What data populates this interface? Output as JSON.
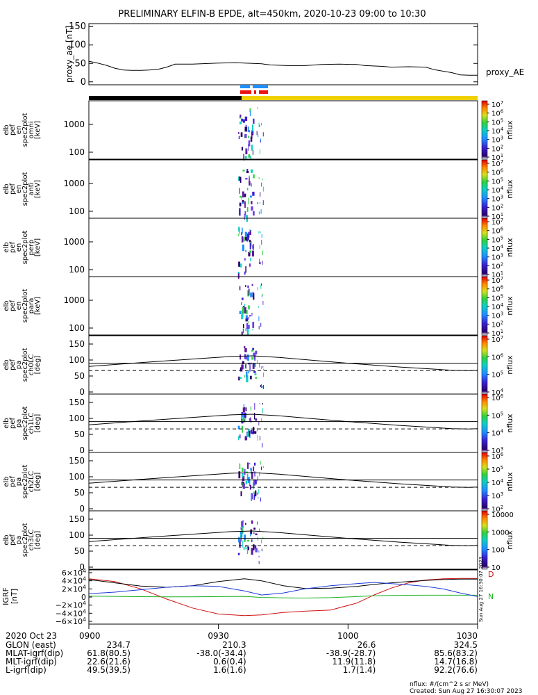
{
  "title": "PRELIMINARY ELFIN-B EPDE, alt=450km, 2020-10-23 09:00 to 10:30",
  "colors": {
    "black_bar": "#000000",
    "yellow_bar": "#f0d000",
    "blue_flag": "#1e90ff",
    "red_flag": "#ee1111",
    "ae_line": "#000000",
    "bx": "#000000",
    "by": "#1a3ad8",
    "bz": "#18b020",
    "bd": "#d01010"
  },
  "chart_data": [
    {
      "type": "line",
      "ylabel": "proxy_ae [nT]",
      "yticks": [
        "150",
        "100",
        "50",
        "0"
      ],
      "ylim": [
        0,
        150
      ],
      "series": [
        {
          "name": "proxy_AE",
          "x": [
            0,
            2,
            4,
            6,
            8,
            10,
            12,
            14,
            16,
            18,
            20,
            24,
            28,
            30,
            34,
            36,
            40,
            42,
            46,
            50,
            54,
            58,
            62,
            64,
            68,
            70,
            74,
            78,
            80,
            84,
            86,
            88,
            90
          ],
          "values": [
            56,
            51,
            45,
            37,
            32,
            31,
            31,
            32,
            34,
            40,
            48,
            48,
            50,
            51,
            52,
            51,
            49,
            46,
            44,
            44,
            47,
            48,
            47,
            44,
            42,
            40,
            41,
            40,
            33,
            25,
            19,
            18,
            18
          ]
        }
      ]
    },
    {
      "type": "heatmap",
      "ylabel": [
        "elb",
        "pef",
        "en",
        "spec2plot",
        "omni",
        "[keV]"
      ],
      "yticks": [
        "1000",
        "100"
      ],
      "cb_label": "nflux",
      "cb_ticks": [
        "10^7",
        "10^6",
        "10^5",
        "10^4",
        "10^3",
        "10^2",
        "10^1"
      ]
    },
    {
      "type": "heatmap",
      "ylabel": [
        "elb",
        "pef",
        "en",
        "spec2plot",
        "anti",
        "[keV]"
      ],
      "yticks": [
        "1000",
        "100"
      ],
      "cb_label": "nflux",
      "cb_ticks": [
        "10^7",
        "10^6",
        "10^5",
        "10^4",
        "10^3",
        "10^2",
        "10^1"
      ]
    },
    {
      "type": "heatmap",
      "ylabel": [
        "elb",
        "pef",
        "en",
        "spec2plot",
        "perp",
        "[keV]"
      ],
      "yticks": [
        "1000",
        "100"
      ],
      "cb_label": "nflux",
      "cb_ticks": [
        "10^7",
        "10^6",
        "10^5",
        "10^4",
        "10^3",
        "10^2",
        "10^1"
      ]
    },
    {
      "type": "heatmap",
      "ylabel": [
        "elb",
        "pef",
        "en",
        "spec2plot",
        "para",
        "[keV]"
      ],
      "yticks": [
        "1000",
        "100"
      ],
      "cb_label": "nflux",
      "cb_ticks": [
        "10^7",
        "10^6",
        "10^5",
        "10^4",
        "10^3",
        "10^2",
        "10^1"
      ]
    },
    {
      "type": "heatmap",
      "ylabel": [
        "elb",
        "pef",
        "pa",
        "spec2plot",
        "ch0LC",
        "[deg]"
      ],
      "yticks": [
        "150",
        "100",
        "50",
        "0"
      ],
      "cb_label": "nflux",
      "cb_ticks": [
        "10^7",
        "10^6",
        "10^5",
        "10^4"
      ]
    },
    {
      "type": "heatmap",
      "ylabel": [
        "elb",
        "pef",
        "pa",
        "spec2plot",
        "ch1LC",
        "[deg]"
      ],
      "yticks": [
        "150",
        "100",
        "50",
        "0"
      ],
      "cb_label": "nflux",
      "cb_ticks": [
        "10^6",
        "10^5",
        "10^4",
        "10^3"
      ]
    },
    {
      "type": "heatmap",
      "ylabel": [
        "elb",
        "pef",
        "pa",
        "spec2plot",
        "ch2LC",
        "[deg]"
      ],
      "yticks": [
        "150",
        "100",
        "50",
        "0"
      ],
      "cb_label": "nflux",
      "cb_ticks": [
        "10^6",
        "10^5",
        "10^4",
        "10^3",
        "10^2"
      ]
    },
    {
      "type": "heatmap",
      "ylabel": [
        "elb",
        "pef",
        "pa",
        "spec2plot",
        "ch3LC",
        "[deg]"
      ],
      "yticks": [
        "150",
        "100",
        "50",
        "0"
      ],
      "cb_label": "nflux",
      "cb_ticks": [
        "10000",
        "1000",
        "100",
        "10"
      ]
    },
    {
      "type": "line",
      "ylabel": [
        "IGRF",
        "[nT]"
      ],
      "yticks": [
        "6×10^4",
        "4×10^4",
        "2×10^4",
        "0",
        "−2×10^4",
        "−4×10^4",
        "−6×10^4"
      ],
      "ylim": [
        -60000,
        60000
      ],
      "legend": [
        "D",
        "N"
      ],
      "series": [
        {
          "name": "D",
          "x": [
            0,
            6,
            12,
            18,
            24,
            30,
            36,
            40,
            45,
            50,
            56,
            62,
            66,
            70,
            74,
            78,
            82,
            86,
            90
          ],
          "values": [
            45000,
            38000,
            20000,
            -5000,
            -27000,
            -42000,
            -46000,
            -44000,
            -38000,
            -35000,
            -32000,
            -15000,
            5000,
            22000,
            35000,
            42000,
            45000,
            46000,
            46000
          ]
        },
        {
          "name": "N",
          "x": [
            0,
            6,
            12,
            18,
            24,
            30,
            36,
            40,
            45,
            50,
            56,
            62,
            66,
            70,
            74,
            78,
            82,
            86,
            90
          ],
          "values": [
            2000,
            1500,
            800,
            500,
            500,
            1000,
            1500,
            -1000,
            -2000,
            -2500,
            -1500,
            1000,
            3000,
            4000,
            4200,
            4400,
            4500,
            4500,
            4500
          ]
        },
        {
          "name": "",
          "x": [
            0,
            6,
            12,
            18,
            24,
            30,
            36,
            40,
            45,
            50,
            56,
            62,
            66,
            70,
            74,
            78,
            82,
            86,
            90
          ],
          "values": [
            43000,
            35000,
            27000,
            24000,
            28000,
            38000,
            45000,
            40000,
            28000,
            21000,
            22000,
            26000,
            31000,
            35000,
            38000,
            41000,
            43000,
            44000,
            44000
          ]
        },
        {
          "name": "",
          "x": [
            0,
            6,
            12,
            18,
            24,
            30,
            36,
            40,
            45,
            50,
            56,
            62,
            66,
            70,
            74,
            78,
            82,
            86,
            90
          ],
          "values": [
            8000,
            12000,
            18000,
            24000,
            28000,
            26000,
            15000,
            5000,
            10000,
            20000,
            28000,
            33000,
            36000,
            33000,
            30000,
            26000,
            20000,
            10000,
            1000
          ]
        }
      ]
    }
  ],
  "pa_ref_lines": {
    "solid": 90,
    "dashed": 67
  },
  "pa_curve": {
    "x": [
      0,
      12,
      24,
      33,
      38,
      44,
      52,
      60,
      66,
      72,
      78,
      84,
      88,
      90
    ],
    "values": [
      80,
      92,
      103,
      111,
      113,
      108,
      99,
      90,
      84,
      78,
      73,
      68,
      67,
      68
    ]
  },
  "footer": {
    "date_label": "2020 Oct 23",
    "time_ticks": [
      "0900",
      "0930",
      "1000",
      "1030"
    ],
    "rows": [
      {
        "label": "GLON (east)",
        "values": [
          "234.7",
          "210.3",
          "26.6",
          "324.5"
        ]
      },
      {
        "label": "MLAT-igrf(dip)",
        "values": [
          "61.8(80.5)",
          "-38.0(-34.4)",
          "-38.9(-28.7)",
          "85.6(83.2)"
        ]
      },
      {
        "label": "MLT-igrf(dip)",
        "values": [
          "22.6(21.6)",
          "0.6(0.4)",
          "11.9(11.8)",
          "14.7(16.8)"
        ]
      },
      {
        "label": "L-igrf(dip)",
        "values": [
          "49.5(39.5)",
          "1.6(1.6)",
          "1.7(1.4)",
          "92.2(76.6)"
        ]
      }
    ],
    "units_note": "nflux: #/(cm^2 s sr MeV)",
    "created": "Created: Sun Aug 27 16:30:07 2023",
    "side_stamp": "Sun Aug 27 16:30:07 2023"
  }
}
